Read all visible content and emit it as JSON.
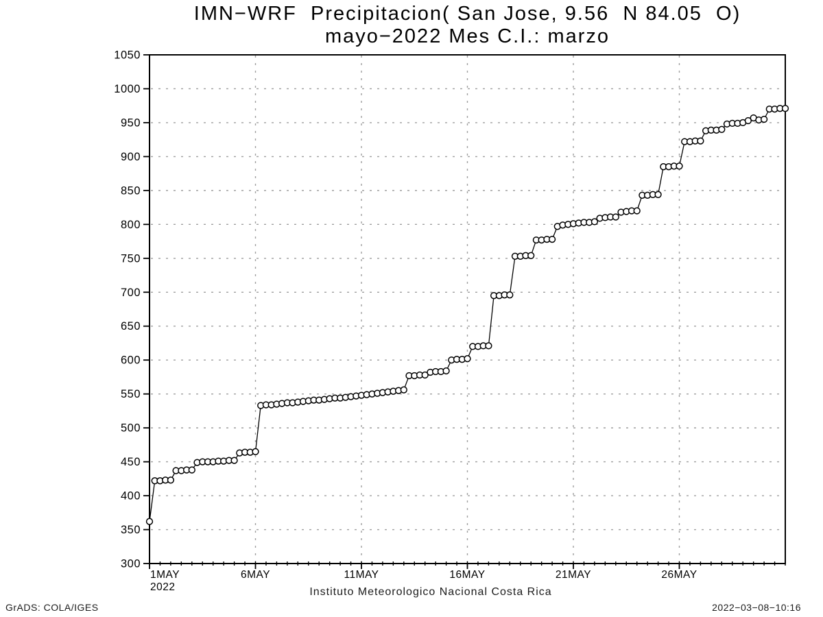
{
  "chart_data": {
    "type": "line",
    "title_line1": "IMN−WRF  Precipitacion( San Jose, 9.56  N 84.05  O)",
    "title_line2": "mayo−2022 Mes C.I.: marzo",
    "xlabel": "Instituto Meteorologico Nacional Costa Rica",
    "ylabel": "",
    "ylim": [
      300,
      1050
    ],
    "y_ticks": [
      300,
      350,
      400,
      450,
      500,
      550,
      600,
      650,
      700,
      750,
      800,
      850,
      900,
      950,
      1000,
      1050
    ],
    "x_tick_labels": [
      "1MAY",
      "6MAY",
      "11MAY",
      "16MAY",
      "21MAY",
      "26MAY"
    ],
    "x_tick_positions": [
      0,
      20,
      40,
      60,
      80,
      100
    ],
    "x_sub_label": "2022",
    "points_per_day": 4,
    "time_step_hours": 6,
    "start_point": "1MAY2022",
    "grid": "dashed",
    "legend": "none",
    "marker": "open-circle",
    "line_color": "#000000",
    "marker_fill": "#ffffff",
    "grid_color": "#9e9e9e",
    "values": [
      362,
      422,
      422,
      423,
      423,
      437,
      437,
      438,
      438,
      449,
      450,
      450,
      450,
      451,
      451,
      452,
      452,
      463,
      464,
      464,
      465,
      533,
      534,
      534,
      535,
      536,
      537,
      537,
      538,
      539,
      540,
      541,
      541,
      542,
      543,
      544,
      544,
      545,
      546,
      547,
      548,
      549,
      550,
      551,
      552,
      553,
      554,
      555,
      556,
      577,
      577,
      578,
      578,
      582,
      583,
      583,
      584,
      600,
      601,
      601,
      602,
      620,
      620,
      621,
      621,
      695,
      695,
      696,
      696,
      753,
      753,
      754,
      754,
      777,
      777,
      778,
      778,
      797,
      799,
      800,
      801,
      802,
      803,
      803,
      804,
      809,
      810,
      811,
      811,
      818,
      819,
      820,
      820,
      843,
      843,
      844,
      844,
      885,
      885,
      886,
      886,
      922,
      922,
      923,
      923,
      938,
      939,
      939,
      940,
      948,
      949,
      949,
      950,
      953,
      957,
      954,
      955,
      970,
      970,
      971,
      971
    ]
  },
  "footer": {
    "grads_credit": "GrADS: COLA/IGES",
    "timestamp": "2022−03−08−10:16"
  }
}
